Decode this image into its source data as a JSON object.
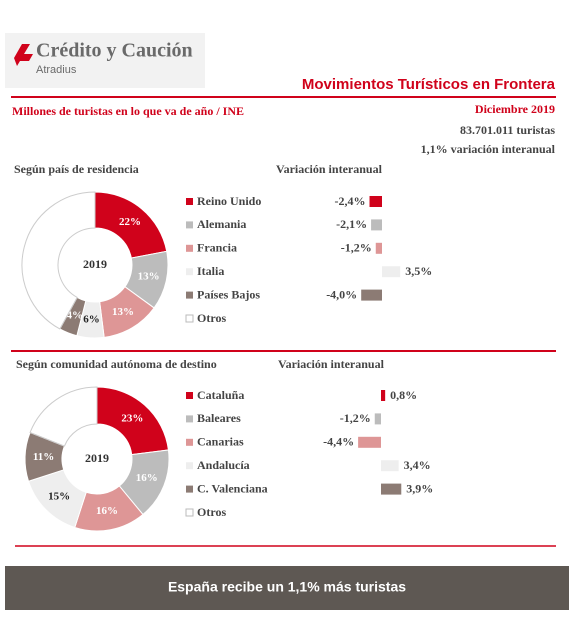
{
  "header": {
    "brand": "Crédito y Caución",
    "brand_sub": "Atradius",
    "title": "Movimientos Turísticos en Frontera",
    "subtitle": "Millones de turistas en lo que va de año / INE",
    "date": "Diciembre 2019",
    "total": "83.701.011 turistas",
    "variation": "1,1% variación  interanual"
  },
  "chart_data": [
    {
      "type": "pie",
      "title": "Según país de residencia",
      "center_label": "2019",
      "categories": [
        "Reino Unido",
        "Alemania",
        "Francia",
        "Italia",
        "Países Bajos",
        "Otros"
      ],
      "values": [
        22,
        13,
        13,
        6,
        4,
        42
      ],
      "value_labels": [
        "22%",
        "13%",
        "13%",
        "6%",
        "4%",
        null
      ],
      "colors": [
        "#d0021b",
        "#bcbcbc",
        "#de9696",
        "#eeeeee",
        "#8c7b74",
        "#ffffff"
      ]
    },
    {
      "type": "bar",
      "title": "Variación interanual",
      "values": [
        -2.4,
        -2.1,
        -1.2,
        3.5,
        -4.0,
        null
      ],
      "value_labels": [
        "-2,4%",
        "-2,1%",
        "-1,2%",
        "3,5%",
        "-4,0%",
        null
      ]
    },
    {
      "type": "pie",
      "title": "Según comunidad autónoma de destino",
      "center_label": "2019",
      "categories": [
        "Cataluña",
        "Baleares",
        "Canarias",
        "Andalucía",
        "C. Valenciana",
        "Otros"
      ],
      "values": [
        23,
        16,
        16,
        15,
        11,
        19
      ],
      "value_labels": [
        "23%",
        "16%",
        "16%",
        "15%",
        "11%",
        null
      ],
      "colors": [
        "#d0021b",
        "#bcbcbc",
        "#de9696",
        "#eeeeee",
        "#8c7b74",
        "#ffffff"
      ]
    },
    {
      "type": "bar",
      "title": "Variación interanual",
      "values": [
        0.8,
        -1.2,
        -4.4,
        3.4,
        3.9,
        null
      ],
      "value_labels": [
        "0,8%",
        "-1,2%",
        "-4,4%",
        "3,4%",
        "3,9%",
        null
      ]
    }
  ],
  "footer": "España recibe un 1,1% más turistas"
}
